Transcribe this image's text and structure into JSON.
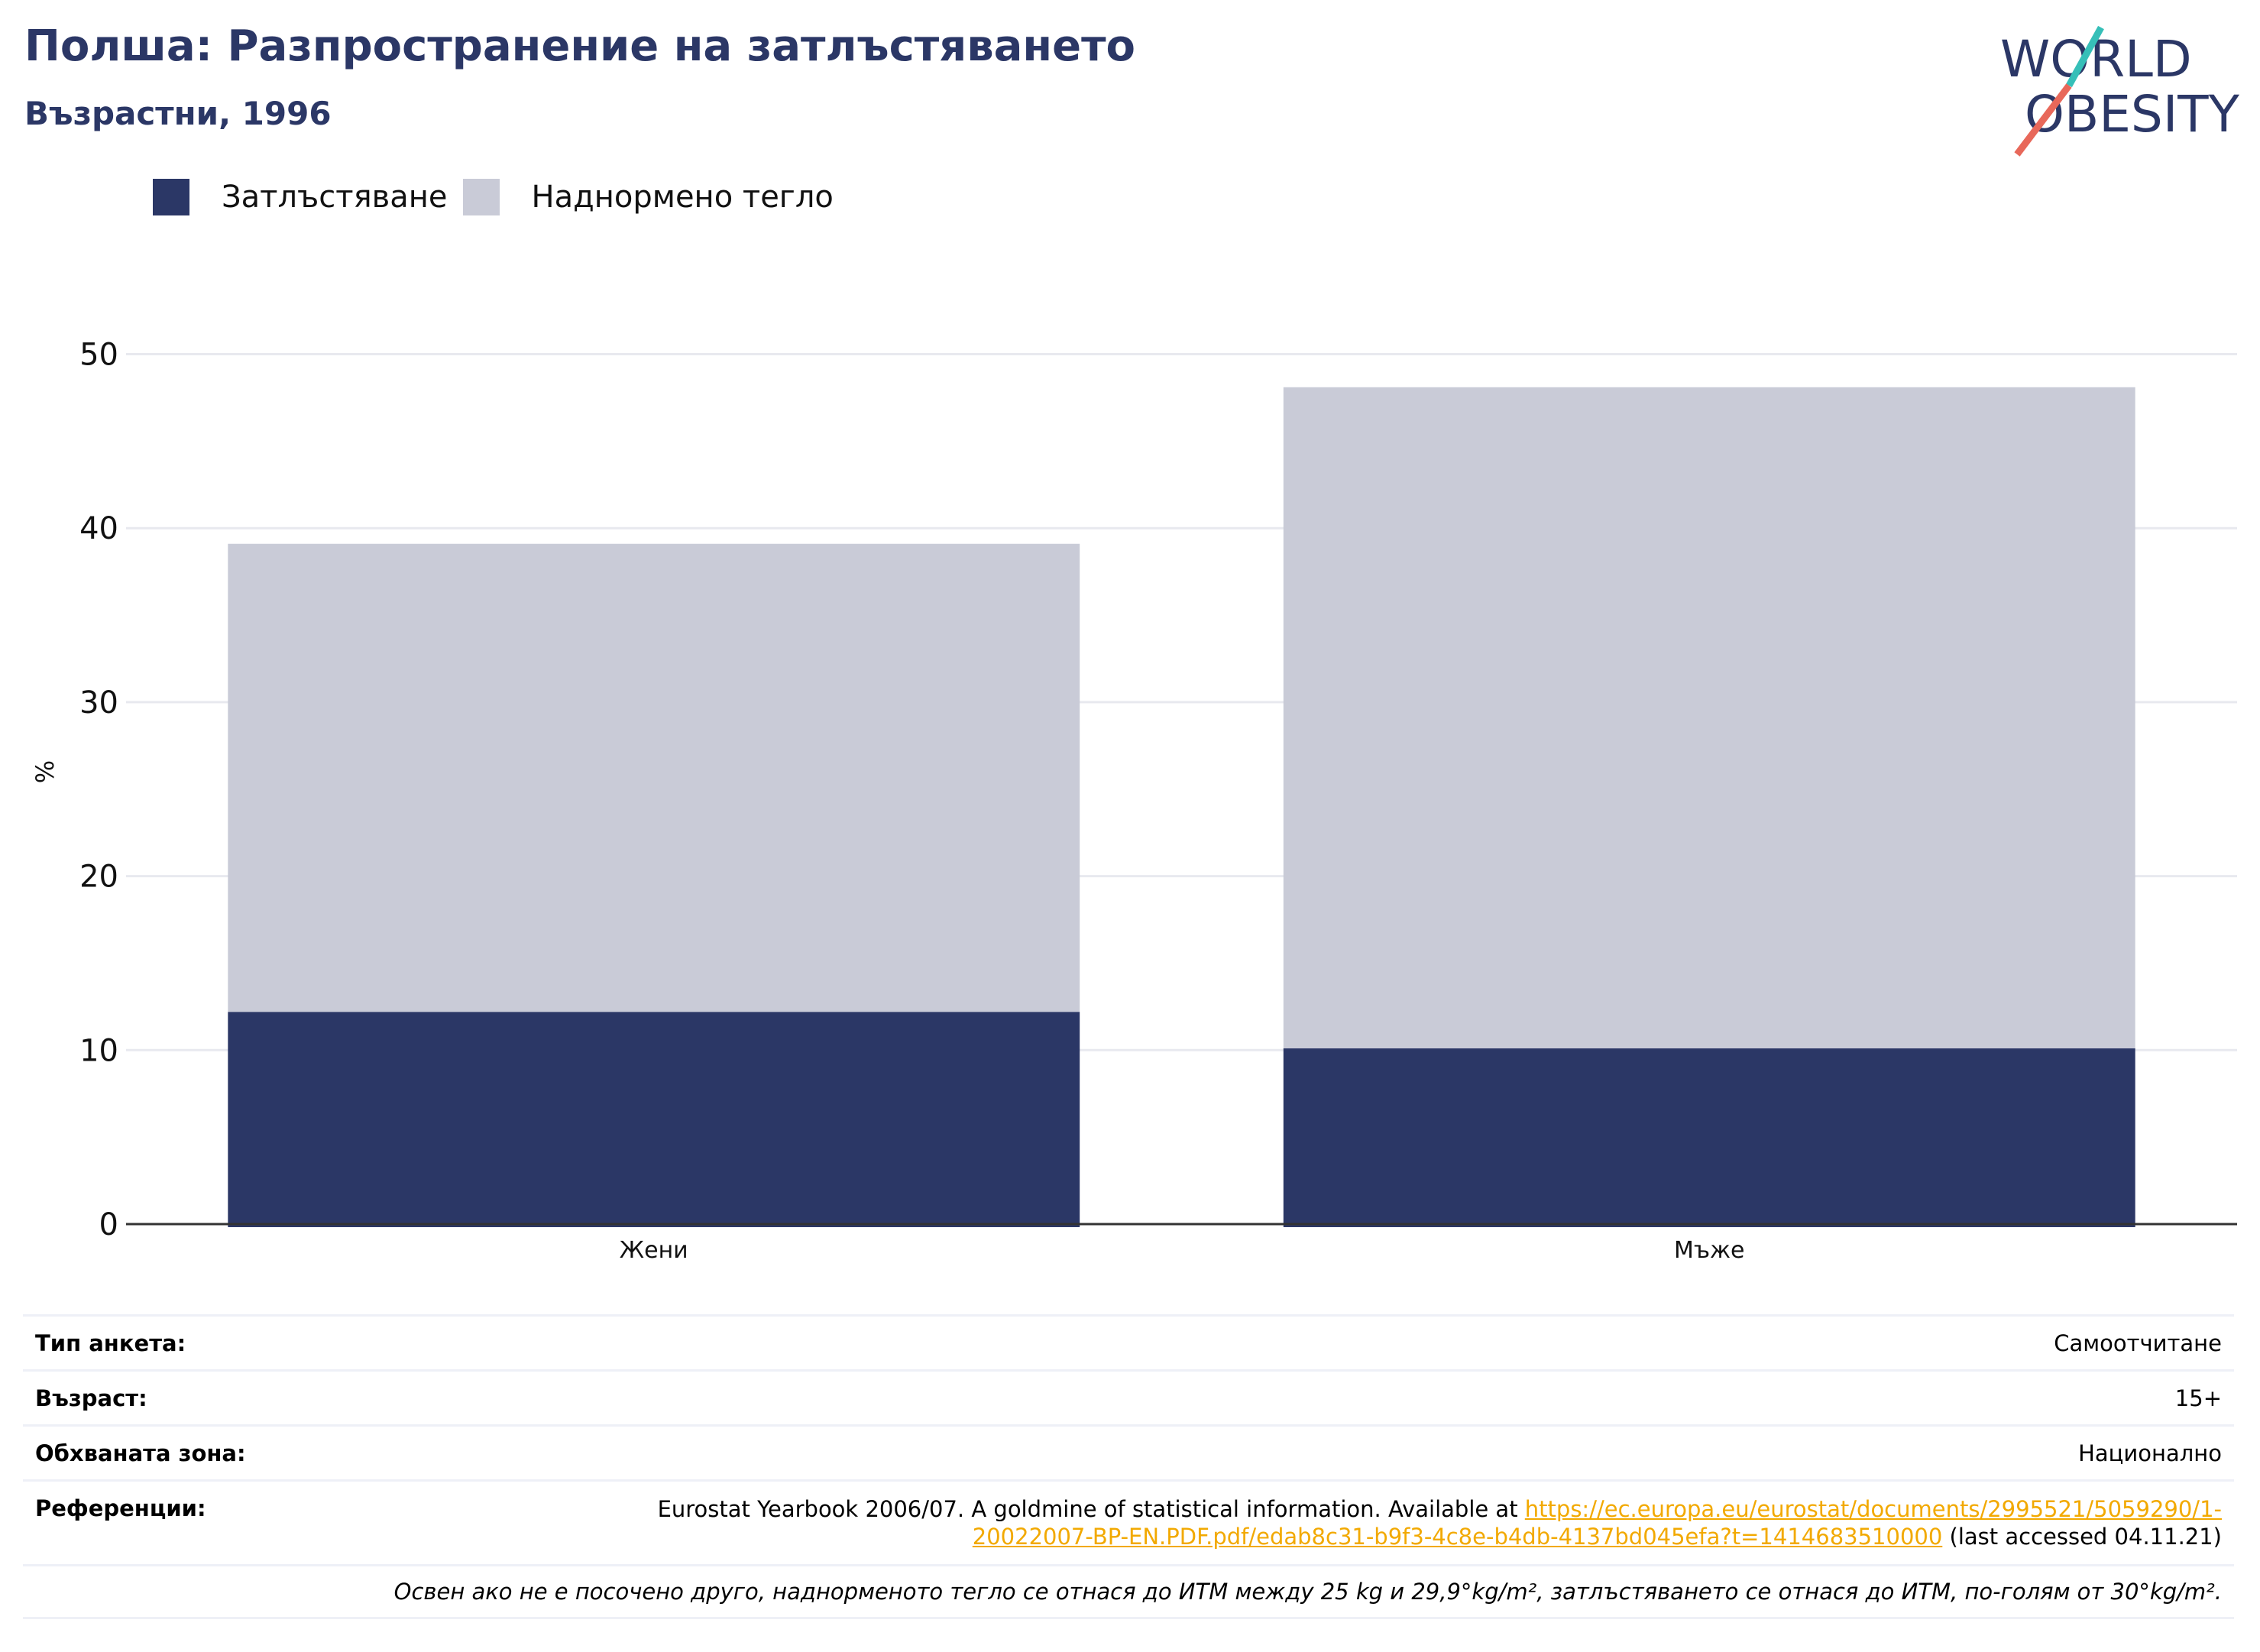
{
  "header": {
    "title": "Полша: Разпространение на затлъстяването",
    "subtitle": "Възрастни, 1996"
  },
  "logo": {
    "line1": "WORLD",
    "line2": "OBESITY",
    "colors": {
      "navy": "#2b3766",
      "teal": "#36bfb8",
      "coral": "#e8685a"
    }
  },
  "legend": {
    "items": [
      {
        "label": "Затлъстяване",
        "color": "#2b3766"
      },
      {
        "label": "Наднормено тегло",
        "color": "#c9cbd7"
      }
    ]
  },
  "chart_data": {
    "type": "bar",
    "stacked": true,
    "categories": [
      "Жени",
      "Мъже"
    ],
    "series": [
      {
        "name": "Затлъстяване",
        "values": [
          12.2,
          10.1
        ],
        "color": "#2b3766"
      },
      {
        "name": "Наднормено тегло",
        "values": [
          26.9,
          38.0
        ],
        "color": "#c9cbd7"
      }
    ],
    "ylabel": "%",
    "ylim": [
      0,
      52
    ],
    "yticks": [
      0,
      10,
      20,
      30,
      40,
      50
    ],
    "grid": true,
    "legend_position": "top-left"
  },
  "info": {
    "survey_type_label": "Тип анкета:",
    "survey_type_value": "Самоотчитане",
    "age_label": "Възраст:",
    "age_value": "15+",
    "area_label": "Обхваната зона:",
    "area_value": "Национално",
    "references_label": "Референции:",
    "references_text_before": "Eurostat Yearbook 2006/07. A goldmine of statistical information. Available at ",
    "references_link_line1": "https://ec.europa.eu/eurostat/documents/2995521/5059290/1-",
    "references_link_line2": "20022007-BP-EN.PDF.pdf/edab8c31-b9f3-4c8e-b4db-4137bd045efa?t=1414683510000",
    "references_text_after": " (last accessed 04.11.21)",
    "note": "Освен ако не е посочено друго, наднорменото тегло се отнася до ИТМ между 25 kg и 29,9°kg/m², затлъстяването се отнася до ИТМ, по-голям от 30°kg/m²."
  }
}
